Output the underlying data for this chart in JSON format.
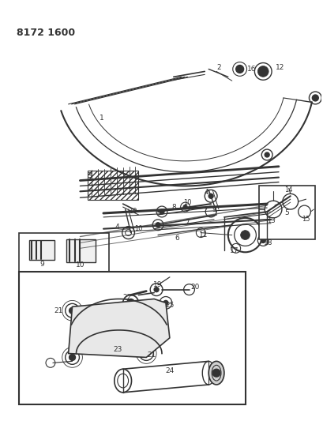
{
  "title_code": "8172 1600",
  "bg_color": "#ffffff",
  "line_color": "#333333",
  "fig_width": 4.1,
  "fig_height": 5.33,
  "dpi": 100
}
